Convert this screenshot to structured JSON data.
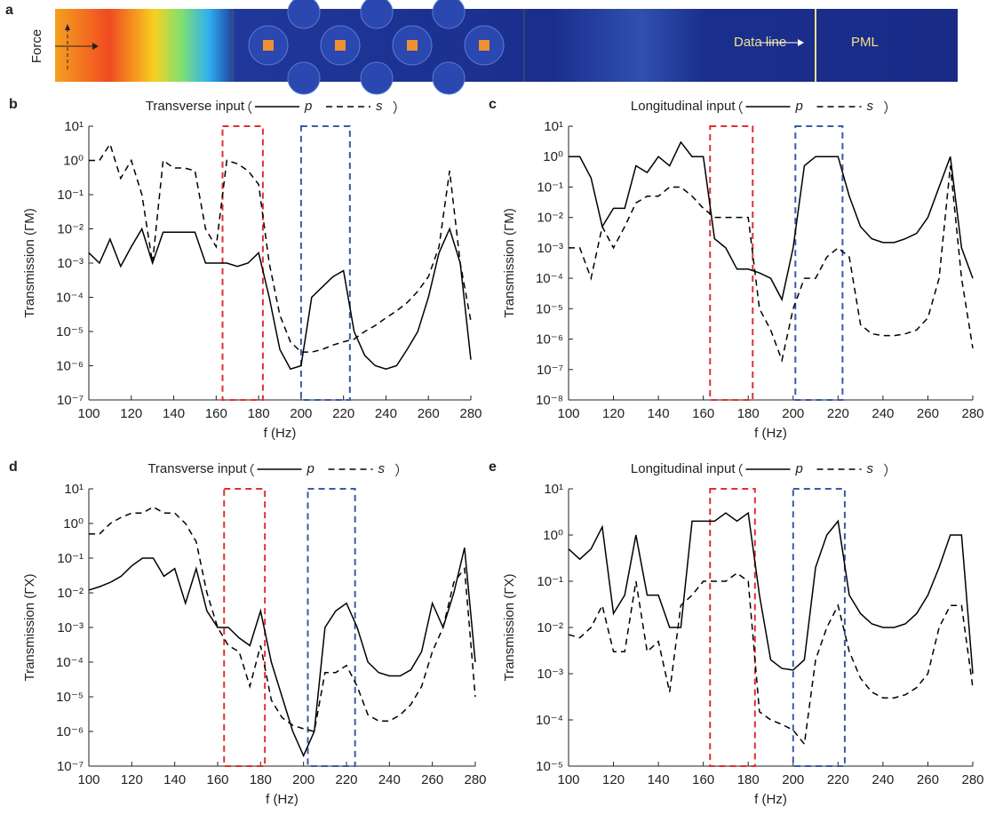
{
  "panel_a": {
    "label": "a",
    "force_label": "Force",
    "data_line_label": "Data line",
    "pml_label": "PML"
  },
  "chart_data": [
    {
      "type": "line",
      "panel_label": "b",
      "title": "Transverse input",
      "xlabel": "f (Hz)",
      "ylabel": "Transmission (ΓM)",
      "log_y": true,
      "x": [
        100,
        105,
        110,
        115,
        120,
        125,
        130,
        135,
        140,
        145,
        150,
        155,
        160,
        165,
        170,
        175,
        180,
        185,
        190,
        195,
        200,
        205,
        210,
        215,
        220,
        225,
        230,
        235,
        240,
        245,
        250,
        255,
        260,
        265,
        270,
        275,
        280
      ],
      "series": [
        {
          "name": "p",
          "color": "#000000",
          "linestyle": "solid",
          "values": [
            0.002,
            0.001,
            0.005,
            0.0008,
            0.003,
            0.01,
            0.001,
            0.008,
            0.008,
            0.008,
            0.008,
            0.001,
            0.001,
            0.001,
            0.0008,
            0.001,
            0.002,
            0.0001,
            3e-06,
            8e-07,
            1e-06,
            0.0001,
            0.0002,
            0.0004,
            0.0006,
            1e-05,
            2e-06,
            1e-06,
            8e-07,
            1e-06,
            3e-06,
            1e-05,
            0.0001,
            0.002,
            0.01,
            0.001,
            1.5e-06
          ]
        },
        {
          "name": "s",
          "color": "#000000",
          "linestyle": "dashed",
          "values": [
            1,
            1,
            3,
            0.3,
            1,
            0.1,
            0.001,
            1,
            0.6,
            0.6,
            0.5,
            0.01,
            0.003,
            1,
            0.8,
            0.5,
            0.2,
            0.001,
            3e-05,
            5e-06,
            2.5e-06,
            2.5e-06,
            3e-06,
            4e-06,
            5e-06,
            6e-06,
            1e-05,
            1.5e-05,
            2.5e-05,
            4e-05,
            7e-05,
            0.00015,
            0.0004,
            0.003,
            0.5,
            0.001,
            2e-05
          ]
        }
      ],
      "bands": [
        {
          "range": [
            163,
            182
          ],
          "color": "#e03030"
        },
        {
          "range": [
            200,
            223
          ],
          "color": "#3a5aa8"
        }
      ],
      "xlim": [
        100,
        280
      ],
      "xticks": [
        100,
        120,
        140,
        160,
        180,
        200,
        220,
        240,
        260,
        280
      ],
      "ylim": [
        1e-07,
        10
      ],
      "yticks": [
        {
          "value": 1e-07,
          "label": "10⁻⁷"
        },
        {
          "value": 1e-06,
          "label": "10⁻⁶"
        },
        {
          "value": 1e-05,
          "label": "10⁻⁵"
        },
        {
          "value": 0.0001,
          "label": "10⁻⁴"
        },
        {
          "value": 0.001,
          "label": "10⁻³"
        },
        {
          "value": 0.01,
          "label": "10⁻²"
        },
        {
          "value": 0.1,
          "label": "10⁻¹"
        },
        {
          "value": 1,
          "label": "10⁰"
        },
        {
          "value": 10,
          "label": "10¹"
        }
      ]
    },
    {
      "type": "line",
      "panel_label": "c",
      "title": "Longitudinal input",
      "xlabel": "f (Hz)",
      "ylabel": "Transmission (ΓM)",
      "log_y": true,
      "x": [
        100,
        105,
        110,
        115,
        120,
        125,
        130,
        135,
        140,
        145,
        150,
        155,
        160,
        165,
        170,
        175,
        180,
        185,
        190,
        195,
        200,
        205,
        210,
        215,
        220,
        225,
        230,
        235,
        240,
        245,
        250,
        255,
        260,
        265,
        270,
        275,
        280
      ],
      "series": [
        {
          "name": "p",
          "color": "#000000",
          "linestyle": "solid",
          "values": [
            1,
            1,
            0.2,
            0.005,
            0.02,
            0.02,
            0.5,
            0.3,
            1,
            0.5,
            3,
            1,
            1,
            0.002,
            0.001,
            0.0002,
            0.0002,
            0.00015,
            0.0001,
            2e-05,
            0.001,
            0.5,
            1,
            1,
            1,
            0.05,
            0.005,
            0.002,
            0.0015,
            0.0015,
            0.002,
            0.003,
            0.01,
            0.1,
            1,
            0.001,
            0.0001
          ]
        },
        {
          "name": "s",
          "color": "#000000",
          "linestyle": "dashed",
          "values": [
            0.001,
            0.001,
            0.0001,
            0.005,
            0.001,
            0.005,
            0.03,
            0.05,
            0.05,
            0.1,
            0.1,
            0.05,
            0.02,
            0.01,
            0.01,
            0.01,
            0.01,
            1e-05,
            2e-06,
            2e-07,
            1e-05,
            0.0001,
            0.0001,
            0.0005,
            0.001,
            0.0005,
            3e-06,
            1.5e-06,
            1.3e-06,
            1.3e-06,
            1.5e-06,
            2e-06,
            5e-06,
            0.0001,
            0.5,
            0.0001,
            5e-07
          ]
        }
      ],
      "bands": [
        {
          "range": [
            163,
            182
          ],
          "color": "#e03030"
        },
        {
          "range": [
            201,
            222
          ],
          "color": "#3a5aa8"
        }
      ],
      "xlim": [
        100,
        280
      ],
      "xticks": [
        100,
        120,
        140,
        160,
        180,
        200,
        220,
        240,
        260,
        280
      ],
      "ylim": [
        1e-08,
        10
      ],
      "yticks": [
        {
          "value": 1e-08,
          "label": "10⁻⁸"
        },
        {
          "value": 1e-07,
          "label": "10⁻⁷"
        },
        {
          "value": 1e-06,
          "label": "10⁻⁶"
        },
        {
          "value": 1e-05,
          "label": "10⁻⁵"
        },
        {
          "value": 0.0001,
          "label": "10⁻⁴"
        },
        {
          "value": 0.001,
          "label": "10⁻³"
        },
        {
          "value": 0.01,
          "label": "10⁻²"
        },
        {
          "value": 0.1,
          "label": "10⁻¹"
        },
        {
          "value": 1,
          "label": "10⁰"
        },
        {
          "value": 10,
          "label": "10¹"
        }
      ]
    },
    {
      "type": "line",
      "panel_label": "d",
      "title": "Transverse input",
      "xlabel": "f (Hz)",
      "ylabel": "Transmission (ΓX)",
      "log_y": true,
      "x": [
        100,
        105,
        110,
        115,
        120,
        125,
        130,
        135,
        140,
        145,
        150,
        155,
        160,
        165,
        170,
        175,
        180,
        185,
        190,
        195,
        200,
        205,
        210,
        215,
        220,
        225,
        230,
        235,
        240,
        245,
        250,
        255,
        260,
        265,
        270,
        275,
        280
      ],
      "series": [
        {
          "name": "p",
          "color": "#000000",
          "linestyle": "solid",
          "values": [
            0.012,
            0.015,
            0.02,
            0.03,
            0.06,
            0.1,
            0.1,
            0.03,
            0.05,
            0.005,
            0.05,
            0.003,
            0.001,
            0.001,
            0.0005,
            0.0003,
            0.003,
            0.0001,
            1e-05,
            1e-06,
            2e-07,
            1e-06,
            0.001,
            0.003,
            0.005,
            0.001,
            0.0001,
            5e-05,
            4e-05,
            4e-05,
            6e-05,
            0.0002,
            0.005,
            0.001,
            0.01,
            0.2,
            0.0001
          ]
        },
        {
          "name": "s",
          "color": "#000000",
          "linestyle": "dashed",
          "values": [
            0.5,
            0.5,
            1,
            1.5,
            2,
            2,
            3,
            2,
            2,
            1,
            0.3,
            0.01,
            0.001,
            0.0003,
            0.0002,
            2e-05,
            0.0003,
            8e-06,
            2.5e-06,
            1.5e-06,
            1.2e-06,
            1e-06,
            5e-05,
            5e-05,
            8e-05,
            2e-05,
            3e-06,
            2e-06,
            2e-06,
            3e-06,
            6e-06,
            2e-05,
            0.0002,
            0.001,
            0.02,
            0.05,
            1e-05
          ]
        }
      ],
      "bands": [
        {
          "range": [
            163,
            182
          ],
          "color": "#e03030"
        },
        {
          "range": [
            202,
            224
          ],
          "color": "#3a5aa8"
        }
      ],
      "xlim": [
        100,
        280
      ],
      "xticks": [
        100,
        120,
        140,
        160,
        180,
        200,
        220,
        240,
        260,
        280
      ],
      "ylim": [
        1e-07,
        10
      ],
      "yticks": [
        {
          "value": 1e-07,
          "label": "10⁻⁷"
        },
        {
          "value": 1e-06,
          "label": "10⁻⁶"
        },
        {
          "value": 1e-05,
          "label": "10⁻⁵"
        },
        {
          "value": 0.0001,
          "label": "10⁻⁴"
        },
        {
          "value": 0.001,
          "label": "10⁻³"
        },
        {
          "value": 0.01,
          "label": "10⁻²"
        },
        {
          "value": 0.1,
          "label": "10⁻¹"
        },
        {
          "value": 1,
          "label": "10⁰"
        },
        {
          "value": 10,
          "label": "10¹"
        }
      ]
    },
    {
      "type": "line",
      "panel_label": "e",
      "title": "Longitudinal input",
      "xlabel": "f (Hz)",
      "ylabel": "Transmission (ΓX)",
      "log_y": true,
      "x": [
        100,
        105,
        110,
        115,
        120,
        125,
        130,
        135,
        140,
        145,
        150,
        155,
        160,
        165,
        170,
        175,
        180,
        185,
        190,
        195,
        200,
        205,
        210,
        215,
        220,
        225,
        230,
        235,
        240,
        245,
        250,
        255,
        260,
        265,
        270,
        275,
        280
      ],
      "series": [
        {
          "name": "p",
          "color": "#000000",
          "linestyle": "solid",
          "values": [
            0.5,
            0.3,
            0.5,
            1.5,
            0.02,
            0.05,
            1,
            0.05,
            0.05,
            0.01,
            0.01,
            2,
            2,
            2,
            3,
            2,
            3,
            0.05,
            0.002,
            0.0013,
            0.0012,
            0.002,
            0.2,
            1,
            2,
            0.05,
            0.02,
            0.012,
            0.01,
            0.01,
            0.012,
            0.02,
            0.05,
            0.2,
            1,
            1,
            0.001
          ]
        },
        {
          "name": "s",
          "color": "#000000",
          "linestyle": "dashed",
          "values": [
            0.007,
            0.006,
            0.01,
            0.03,
            0.003,
            0.003,
            0.1,
            0.003,
            0.005,
            0.0004,
            0.03,
            0.05,
            0.1,
            0.1,
            0.1,
            0.15,
            0.1,
            0.00015,
            0.0001,
            8e-05,
            6e-05,
            3e-05,
            0.002,
            0.01,
            0.03,
            0.003,
            0.0008,
            0.0004,
            0.0003,
            0.0003,
            0.00035,
            0.0005,
            0.001,
            0.01,
            0.03,
            0.03,
            0.0005
          ]
        }
      ],
      "bands": [
        {
          "range": [
            163,
            183
          ],
          "color": "#e03030"
        },
        {
          "range": [
            200,
            223
          ],
          "color": "#3a5aa8"
        }
      ],
      "xlim": [
        100,
        280
      ],
      "xticks": [
        100,
        120,
        140,
        160,
        180,
        200,
        220,
        240,
        260,
        280
      ],
      "ylim": [
        1e-05,
        10
      ],
      "yticks": [
        {
          "value": 1e-05,
          "label": "10⁻⁵"
        },
        {
          "value": 0.0001,
          "label": "10⁻⁴"
        },
        {
          "value": 0.001,
          "label": "10⁻³"
        },
        {
          "value": 0.01,
          "label": "10⁻²"
        },
        {
          "value": 0.1,
          "label": "10⁻¹"
        },
        {
          "value": 1,
          "label": "10⁰"
        },
        {
          "value": 10,
          "label": "10¹"
        }
      ]
    }
  ]
}
